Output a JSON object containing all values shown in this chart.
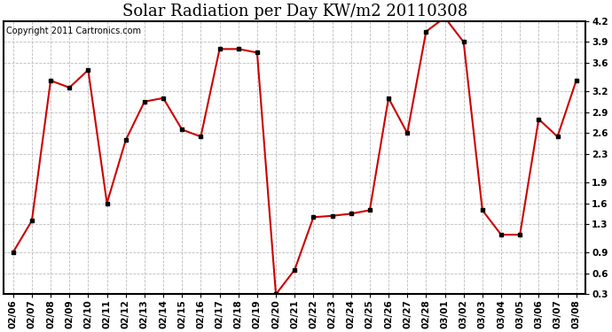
{
  "title": "Solar Radiation per Day KW/m2 20110308",
  "copyright": "Copyright 2011 Cartronics.com",
  "dates": [
    "02/06",
    "02/07",
    "02/08",
    "02/09",
    "02/10",
    "02/11",
    "02/12",
    "02/13",
    "02/14",
    "02/15",
    "02/16",
    "02/17",
    "02/18",
    "02/19",
    "02/20",
    "02/21",
    "02/22",
    "02/23",
    "02/24",
    "02/25",
    "02/26",
    "02/27",
    "02/28",
    "03/01",
    "03/02",
    "03/03",
    "03/04",
    "03/05",
    "03/06",
    "03/07",
    "03/08"
  ],
  "values": [
    0.9,
    1.35,
    3.35,
    3.25,
    3.5,
    1.6,
    2.5,
    3.05,
    3.1,
    2.65,
    2.55,
    3.8,
    3.8,
    3.75,
    0.3,
    0.65,
    1.4,
    1.42,
    1.45,
    1.5,
    3.1,
    2.6,
    4.05,
    4.25,
    3.9,
    1.5,
    1.15,
    1.15,
    2.8,
    2.55,
    3.35
  ],
  "line_color": "#cc0000",
  "marker_color": "#000000",
  "bg_color": "#ffffff",
  "grid_color": "#bbbbbb",
  "ylim": [
    0.3,
    4.2
  ],
  "yticks": [
    0.3,
    0.6,
    0.9,
    1.3,
    1.6,
    1.9,
    2.3,
    2.6,
    2.9,
    3.2,
    3.6,
    3.9,
    4.2
  ],
  "title_fontsize": 13,
  "copyright_fontsize": 7,
  "tick_fontsize": 7.5
}
